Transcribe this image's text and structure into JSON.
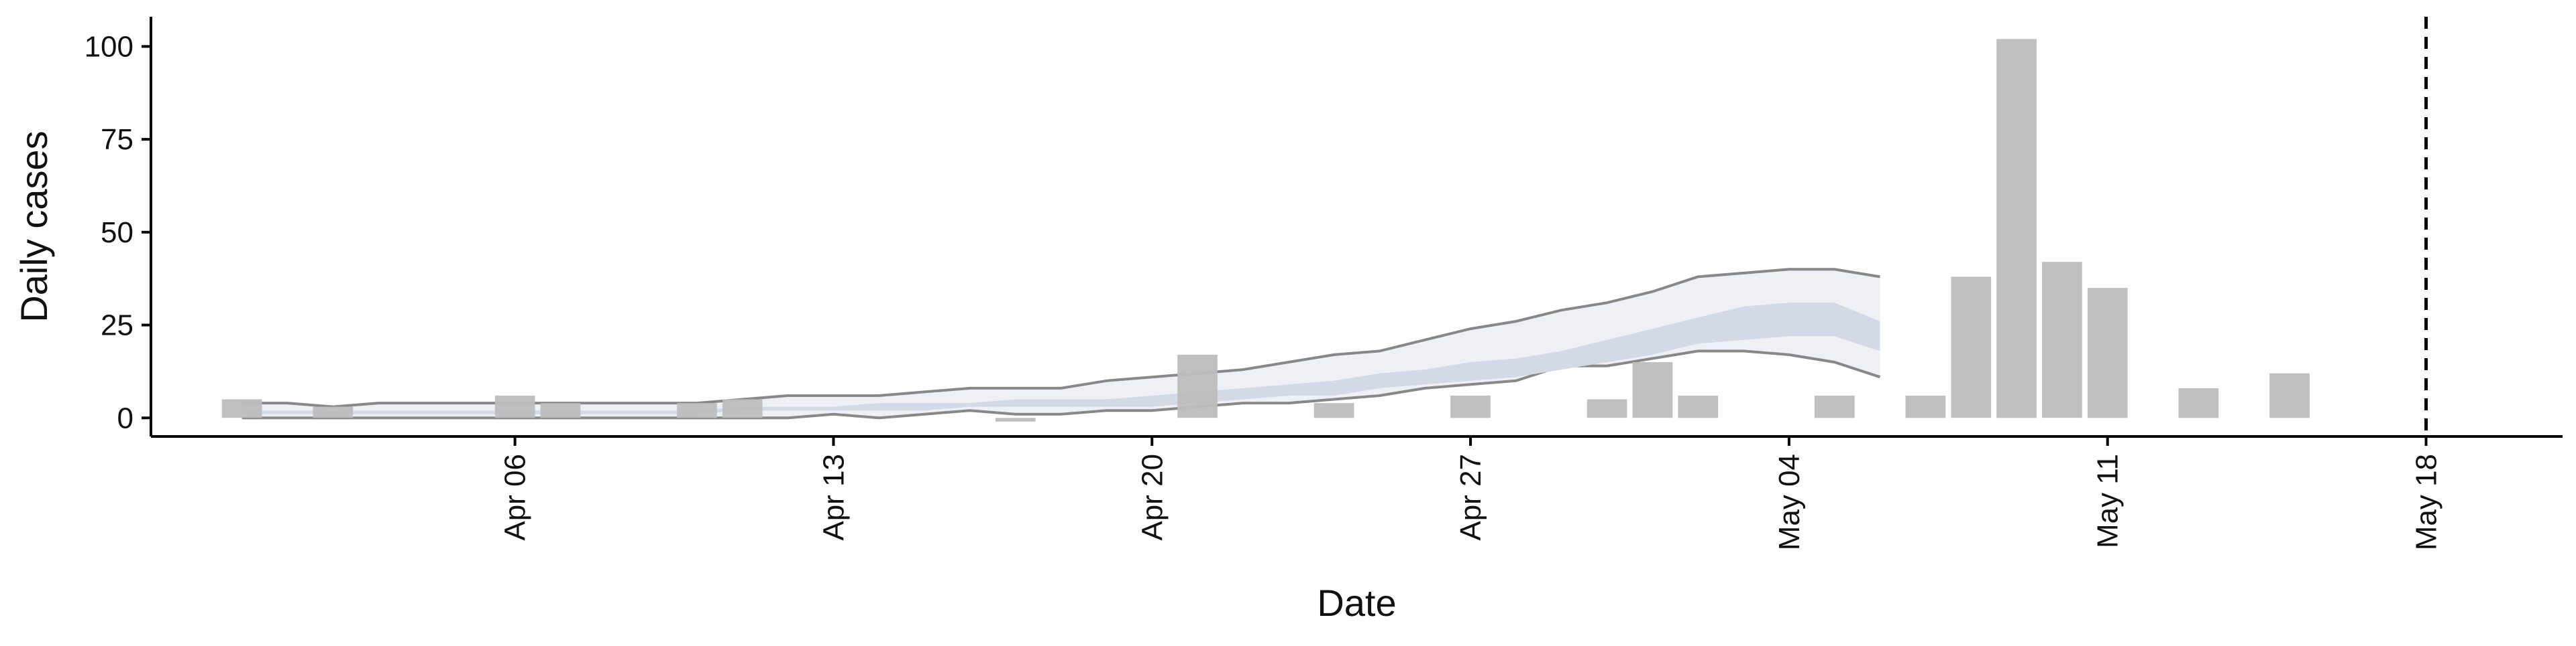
{
  "chart_data": {
    "type": "bar",
    "xlabel": "Date",
    "ylabel": "Daily cases",
    "x_axis": {
      "type": "date",
      "range": [
        "2020-03-29",
        "2020-05-21"
      ],
      "ticks": [
        {
          "date": "2020-04-06",
          "label": "Apr 06"
        },
        {
          "date": "2020-04-13",
          "label": "Apr 13"
        },
        {
          "date": "2020-04-20",
          "label": "Apr 20"
        },
        {
          "date": "2020-04-27",
          "label": "Apr 27"
        },
        {
          "date": "2020-05-04",
          "label": "May 04"
        },
        {
          "date": "2020-05-11",
          "label": "May 11"
        },
        {
          "date": "2020-05-18",
          "label": "May 18"
        }
      ]
    },
    "y_axis": {
      "range": [
        -5,
        108
      ],
      "ticks": [
        0,
        25,
        50,
        75,
        100
      ]
    },
    "grid": false,
    "vline": {
      "date": "2020-05-18",
      "style": "dashed",
      "color": "#000000"
    },
    "bars": {
      "color": "#bdbdbd",
      "points": [
        {
          "date": "2020-03-31",
          "value": 5
        },
        {
          "date": "2020-04-02",
          "value": 3
        },
        {
          "date": "2020-04-06",
          "value": 6
        },
        {
          "date": "2020-04-07",
          "value": 4
        },
        {
          "date": "2020-04-10",
          "value": 4
        },
        {
          "date": "2020-04-11",
          "value": 5
        },
        {
          "date": "2020-04-17",
          "value": -1
        },
        {
          "date": "2020-04-21",
          "value": 17
        },
        {
          "date": "2020-04-24",
          "value": 4
        },
        {
          "date": "2020-04-27",
          "value": 6
        },
        {
          "date": "2020-04-30",
          "value": 5
        },
        {
          "date": "2020-05-01",
          "value": 15
        },
        {
          "date": "2020-05-02",
          "value": 6
        },
        {
          "date": "2020-05-05",
          "value": 6
        },
        {
          "date": "2020-05-07",
          "value": 6
        },
        {
          "date": "2020-05-08",
          "value": 38
        },
        {
          "date": "2020-05-09",
          "value": 102
        },
        {
          "date": "2020-05-10",
          "value": 42
        },
        {
          "date": "2020-05-11",
          "value": 35
        },
        {
          "date": "2020-05-13",
          "value": 8
        },
        {
          "date": "2020-05-15",
          "value": 12
        }
      ]
    },
    "bands": [
      {
        "role": "outer",
        "color": "#eef0f5",
        "edge_color": "#888888",
        "x": [
          "2020-03-31",
          "2020-04-01",
          "2020-04-02",
          "2020-04-03",
          "2020-04-04",
          "2020-04-05",
          "2020-04-06",
          "2020-04-07",
          "2020-04-08",
          "2020-04-09",
          "2020-04-10",
          "2020-04-11",
          "2020-04-12",
          "2020-04-13",
          "2020-04-14",
          "2020-04-15",
          "2020-04-16",
          "2020-04-17",
          "2020-04-18",
          "2020-04-19",
          "2020-04-20",
          "2020-04-21",
          "2020-04-22",
          "2020-04-23",
          "2020-04-24",
          "2020-04-25",
          "2020-04-26",
          "2020-04-27",
          "2020-04-28",
          "2020-04-29",
          "2020-04-30",
          "2020-05-01",
          "2020-05-02",
          "2020-05-03",
          "2020-05-04",
          "2020-05-05",
          "2020-05-06"
        ],
        "upper": [
          4,
          4,
          3,
          4,
          4,
          4,
          4,
          4,
          4,
          4,
          4,
          5,
          6,
          6,
          6,
          7,
          8,
          8,
          8,
          10,
          11,
          12,
          13,
          15,
          17,
          18,
          21,
          24,
          26,
          29,
          31,
          34,
          38,
          39,
          40,
          40,
          38
        ],
        "lower": [
          0,
          0,
          0,
          0,
          0,
          0,
          0,
          0,
          0,
          0,
          0,
          0,
          0,
          1,
          0,
          1,
          2,
          1,
          1,
          2,
          2,
          3,
          4,
          4,
          5,
          6,
          8,
          9,
          10,
          14,
          14,
          16,
          18,
          18,
          17,
          15,
          11
        ]
      },
      {
        "role": "inner",
        "color": "#d4d9e6",
        "edge_color": "none",
        "x": [
          "2020-03-31",
          "2020-04-01",
          "2020-04-02",
          "2020-04-03",
          "2020-04-04",
          "2020-04-05",
          "2020-04-06",
          "2020-04-07",
          "2020-04-08",
          "2020-04-09",
          "2020-04-10",
          "2020-04-11",
          "2020-04-12",
          "2020-04-13",
          "2020-04-14",
          "2020-04-15",
          "2020-04-16",
          "2020-04-17",
          "2020-04-18",
          "2020-04-19",
          "2020-04-20",
          "2020-04-21",
          "2020-04-22",
          "2020-04-23",
          "2020-04-24",
          "2020-04-25",
          "2020-04-26",
          "2020-04-27",
          "2020-04-28",
          "2020-04-29",
          "2020-04-30",
          "2020-05-01",
          "2020-05-02",
          "2020-05-03",
          "2020-05-04",
          "2020-05-05",
          "2020-05-06"
        ],
        "upper": [
          2,
          2,
          2,
          2,
          2,
          2,
          2,
          2,
          2,
          2,
          2,
          3,
          3,
          3,
          4,
          4,
          4,
          5,
          5,
          5,
          6,
          7,
          8,
          9,
          10,
          12,
          13,
          15,
          16,
          18,
          21,
          24,
          27,
          30,
          31,
          31,
          26
        ],
        "lower": [
          1,
          1,
          1,
          1,
          1,
          1,
          1,
          1,
          1,
          1,
          1,
          2,
          2,
          2,
          2,
          2,
          3,
          3,
          3,
          3,
          3,
          4,
          5,
          6,
          6,
          8,
          9,
          10,
          11,
          13,
          15,
          17,
          20,
          21,
          22,
          22,
          18
        ]
      }
    ]
  }
}
